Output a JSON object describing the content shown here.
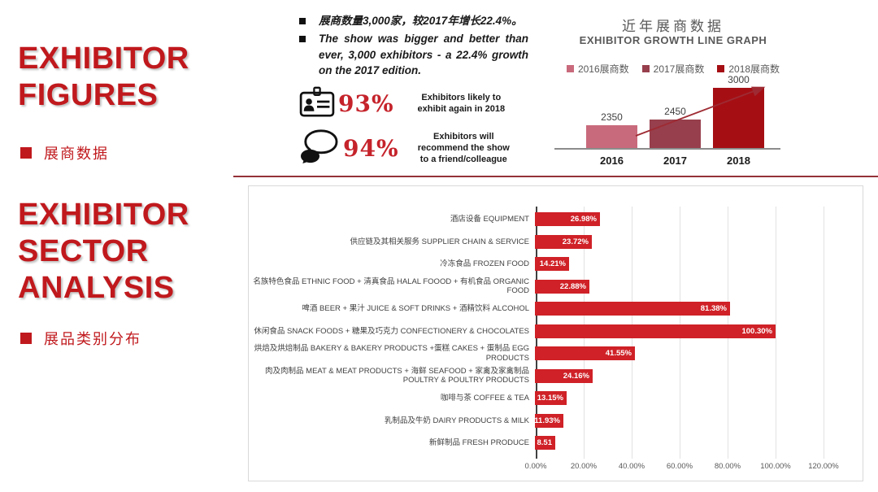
{
  "colors": {
    "brand_red": "#c0191d",
    "stat_red": "#c5232b",
    "divider_red": "#943137",
    "sector_bar_red": "#cf2127",
    "growth_bar_2016": "#c96a7c",
    "growth_bar_2017": "#973f4d",
    "growth_bar_2018": "#a50f14",
    "trend_line": "#9e2b33",
    "gray_text": "#595959"
  },
  "left_panel": {
    "figures_title": "EXHIBITOR\nFIGURES",
    "figures_subtitle": "展商数据",
    "sector_title": "EXHIBITOR\nSECTOR\nANALYSIS",
    "sector_subtitle": "展品类别分布"
  },
  "notes": {
    "bullet_cn": "展商数量3,000家，较2017年增长22.4%。",
    "bullet_en": "The show was bigger and better than ever, 3,000 exhibitors - a 22.4% growth on the 2017 edition.",
    "stats": [
      {
        "icon": "id-badge-icon",
        "value": "93%",
        "label": "Exhibitors likely to\nexhibit again in 2018"
      },
      {
        "icon": "speech-bubbles-icon",
        "value": "94%",
        "label": "Exhibitors will\nrecommend the show\nto a friend/colleague"
      }
    ]
  },
  "chart_data": [
    {
      "type": "bar",
      "title": "近年展商数据",
      "subtitle": "EXHIBITOR GROWTH LINE GRAPH",
      "legend": [
        "2016展商数",
        "2017展商数",
        "2018展商数"
      ],
      "legend_colors": [
        "#c96a7c",
        "#973f4d",
        "#a50f14"
      ],
      "categories": [
        "2016",
        "2017",
        "2018"
      ],
      "values": [
        2350,
        2450,
        3000
      ],
      "bar_colors": [
        "#c96a7c",
        "#973f4d",
        "#a50f14"
      ],
      "ylim": [
        1950,
        3000
      ],
      "trend_arrow": true,
      "legend_position": "top"
    },
    {
      "type": "bar",
      "orientation": "horizontal",
      "title": "",
      "categories": [
        "酒店设备 EQUIPMENT",
        "供应链及其相关服务 SUPPLIER CHAIN & SERVICE",
        "冷冻食品 FROZEN FOOD",
        "名族特色食品 ETHNIC FOOD + 清真食品 HALAL FOOOD + 有机食品 ORGANIC FOOD",
        "啤酒 BEER + 果汁 JUICE & SOFT DRINKS + 酒精饮料 ALCOHOL",
        "休闲食品 SNACK FOODS + 糖果及巧克力 CONFECTIONERY & CHOCOLATES",
        "烘焙及烘焙制品 BAKERY & BAKERY PRODUCTS +蛋糕 CAKES + 蛋制品 EGG PRODUCTS",
        "肉及肉制品 MEAT & MEAT PRODUCTS + 海鲜 SEAFOOD + 家禽及家禽制品 POULTRY & POULTRY PRODUCTS",
        "咖啡与茶 COFFEE & TEA",
        "乳制品及牛奶 DAIRY PRODUCTS & MILK",
        "新鲜制品 FRESH PRODUCE"
      ],
      "values": [
        26.98,
        23.72,
        14.21,
        22.88,
        81.38,
        100.3,
        41.55,
        24.16,
        13.15,
        11.93,
        8.51
      ],
      "value_labels": [
        "26.98%",
        "23.72%",
        "14.21%",
        "22.88%",
        "81.38%",
        "100.30%",
        "41.55%",
        "24.16%",
        "13.15%",
        "11.93%",
        "8.51"
      ],
      "xticks": [
        "0.00%",
        "20.00%",
        "40.00%",
        "60.00%",
        "80.00%",
        "100.00%",
        "120.00%"
      ],
      "xlim": [
        0,
        120
      ],
      "grid": true,
      "bar_color": "#cf2127"
    }
  ]
}
